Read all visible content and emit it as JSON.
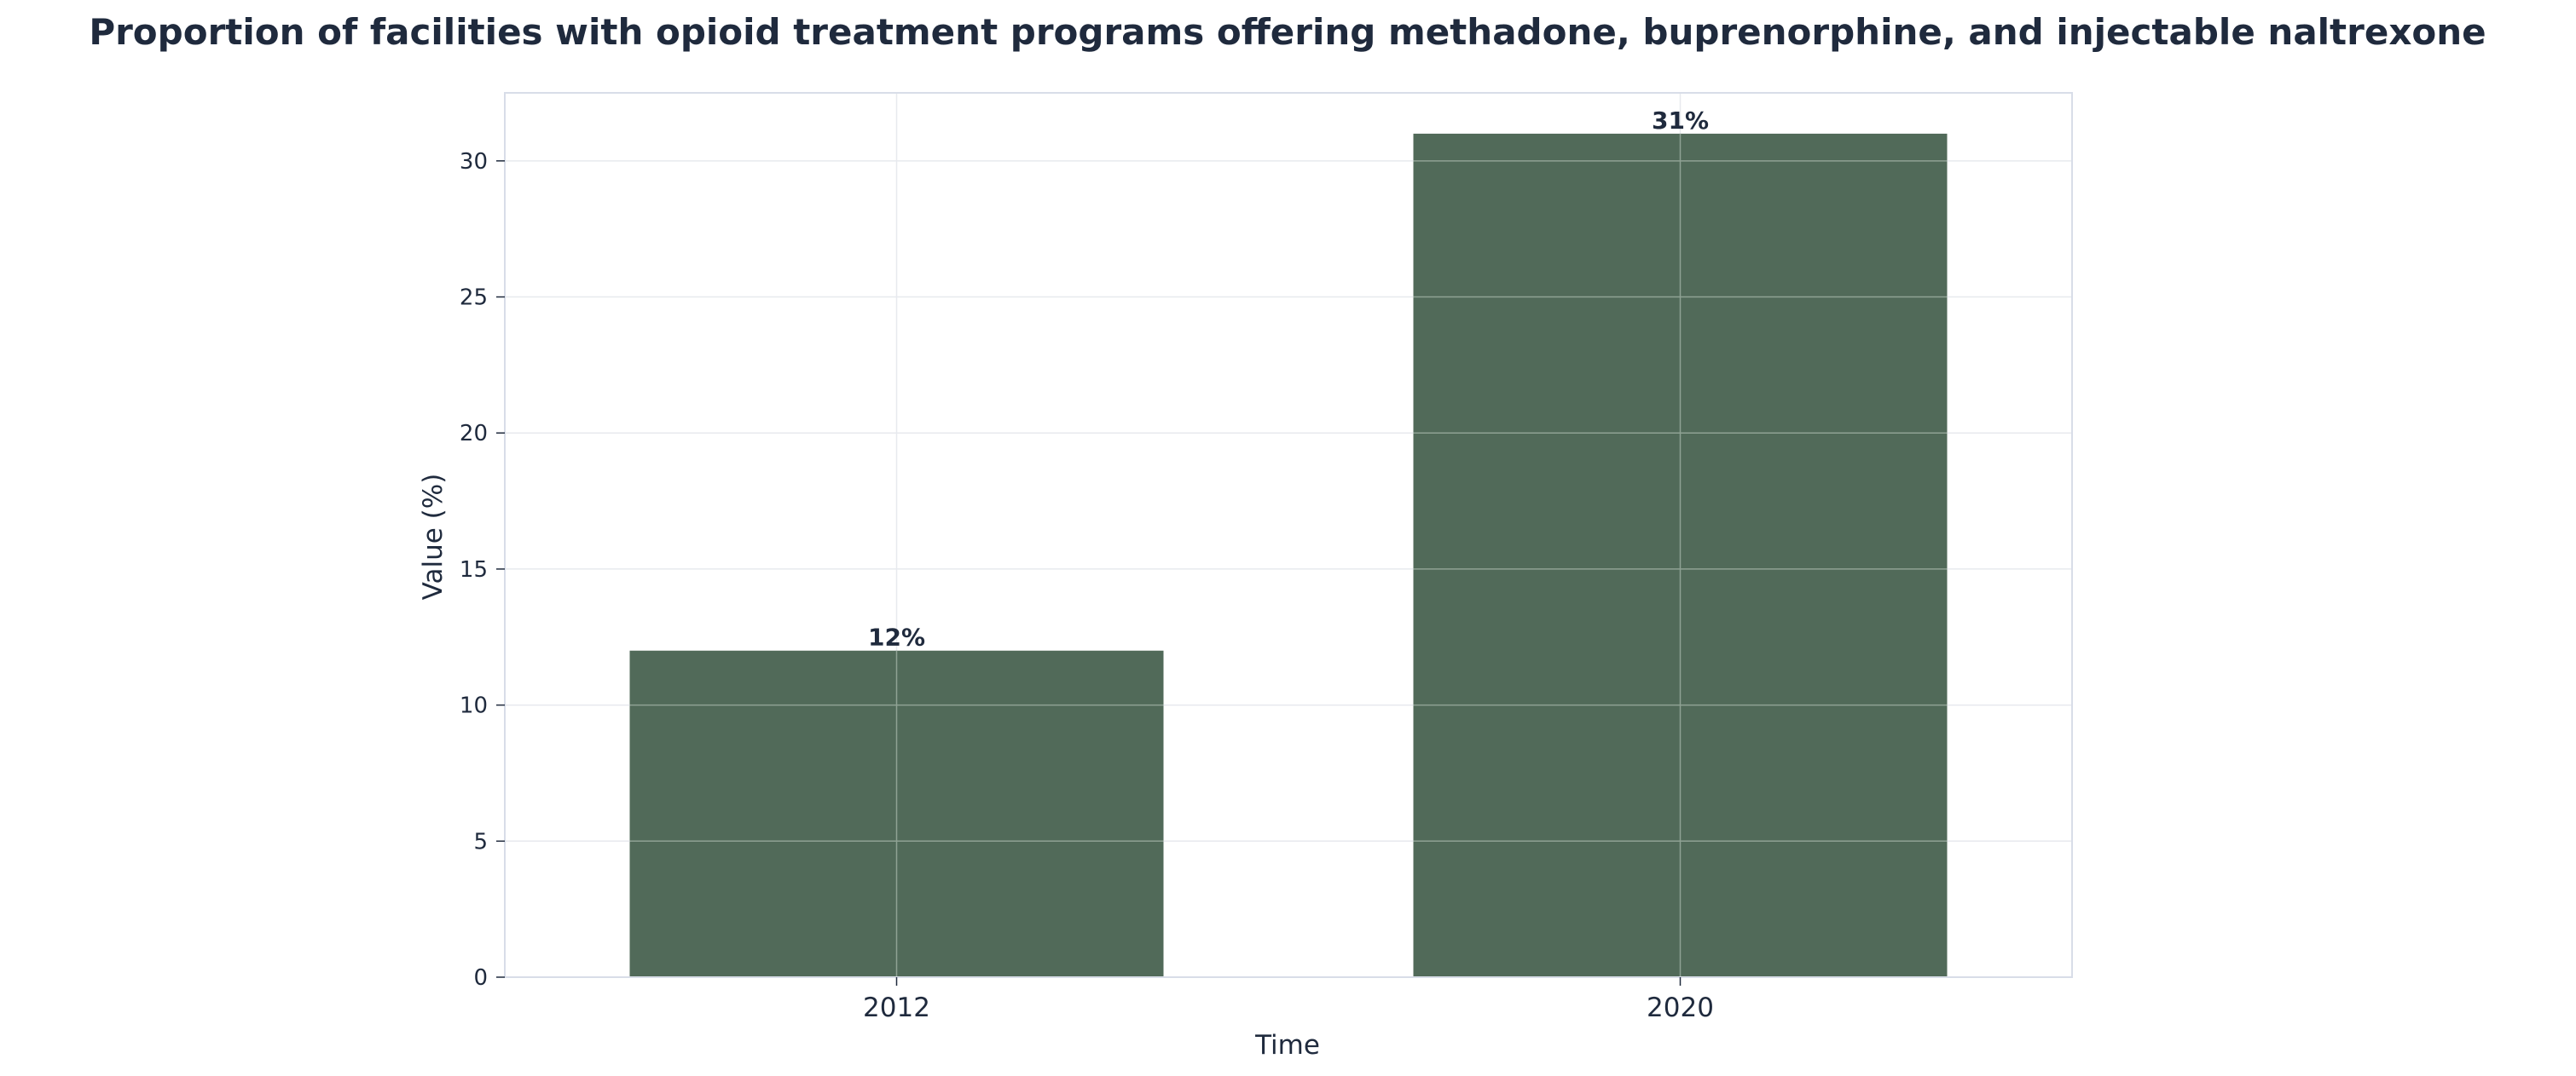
{
  "chart_data": {
    "type": "bar",
    "title": "Proportion of facilities with opioid treatment programs offering methadone, buprenorphine, and injectable naltrexone",
    "xlabel": "Time",
    "ylabel": "Value (%)",
    "categories": [
      "2012",
      "2020"
    ],
    "values": [
      12,
      31
    ],
    "data_labels": [
      "12%",
      "31%"
    ],
    "ylim": [
      0,
      32.5
    ],
    "yticks": [
      0,
      5,
      10,
      15,
      20,
      25,
      30
    ],
    "grid": true,
    "legend": "none",
    "colors": {
      "bar": "#516a59",
      "text": "#1f2a3d",
      "grid": "#e7e9ee",
      "grid_over_bar": "#8fa294",
      "frame": "#d8dde8"
    }
  }
}
